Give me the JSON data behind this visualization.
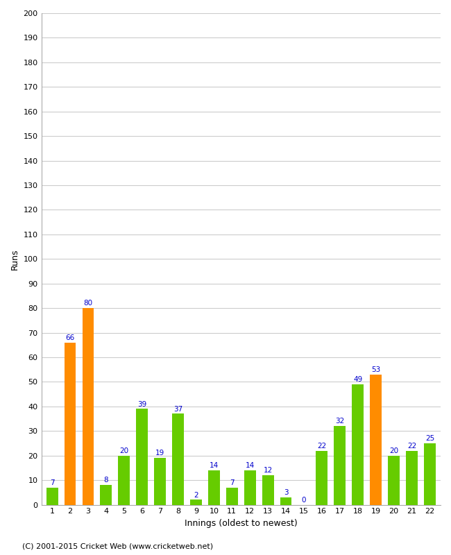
{
  "title": "",
  "xlabel": "Innings (oldest to newest)",
  "ylabel": "Runs",
  "categories": [
    1,
    2,
    3,
    4,
    5,
    6,
    7,
    8,
    9,
    10,
    11,
    12,
    13,
    14,
    15,
    16,
    17,
    18,
    19,
    20,
    21,
    22
  ],
  "values": [
    7,
    66,
    80,
    8,
    20,
    39,
    19,
    37,
    2,
    14,
    7,
    14,
    12,
    3,
    0,
    22,
    32,
    49,
    53,
    20,
    22,
    25
  ],
  "colors": [
    "#66cc00",
    "#ff8c00",
    "#ff8c00",
    "#66cc00",
    "#66cc00",
    "#66cc00",
    "#66cc00",
    "#66cc00",
    "#66cc00",
    "#66cc00",
    "#66cc00",
    "#66cc00",
    "#66cc00",
    "#66cc00",
    "#66cc00",
    "#66cc00",
    "#66cc00",
    "#66cc00",
    "#ff8c00",
    "#66cc00",
    "#66cc00",
    "#66cc00"
  ],
  "ylim": [
    0,
    200
  ],
  "yticks": [
    0,
    10,
    20,
    30,
    40,
    50,
    60,
    70,
    80,
    90,
    100,
    110,
    120,
    130,
    140,
    150,
    160,
    170,
    180,
    190,
    200
  ],
  "label_color": "#0000cc",
  "label_fontsize": 7.5,
  "background_color": "#ffffff",
  "plot_bg_color": "#ffffff",
  "grid_color": "#cccccc",
  "footer": "(C) 2001-2015 Cricket Web (www.cricketweb.net)",
  "footer_fontsize": 8,
  "tick_fontsize": 8,
  "axis_label_fontsize": 9,
  "bar_width": 0.65
}
